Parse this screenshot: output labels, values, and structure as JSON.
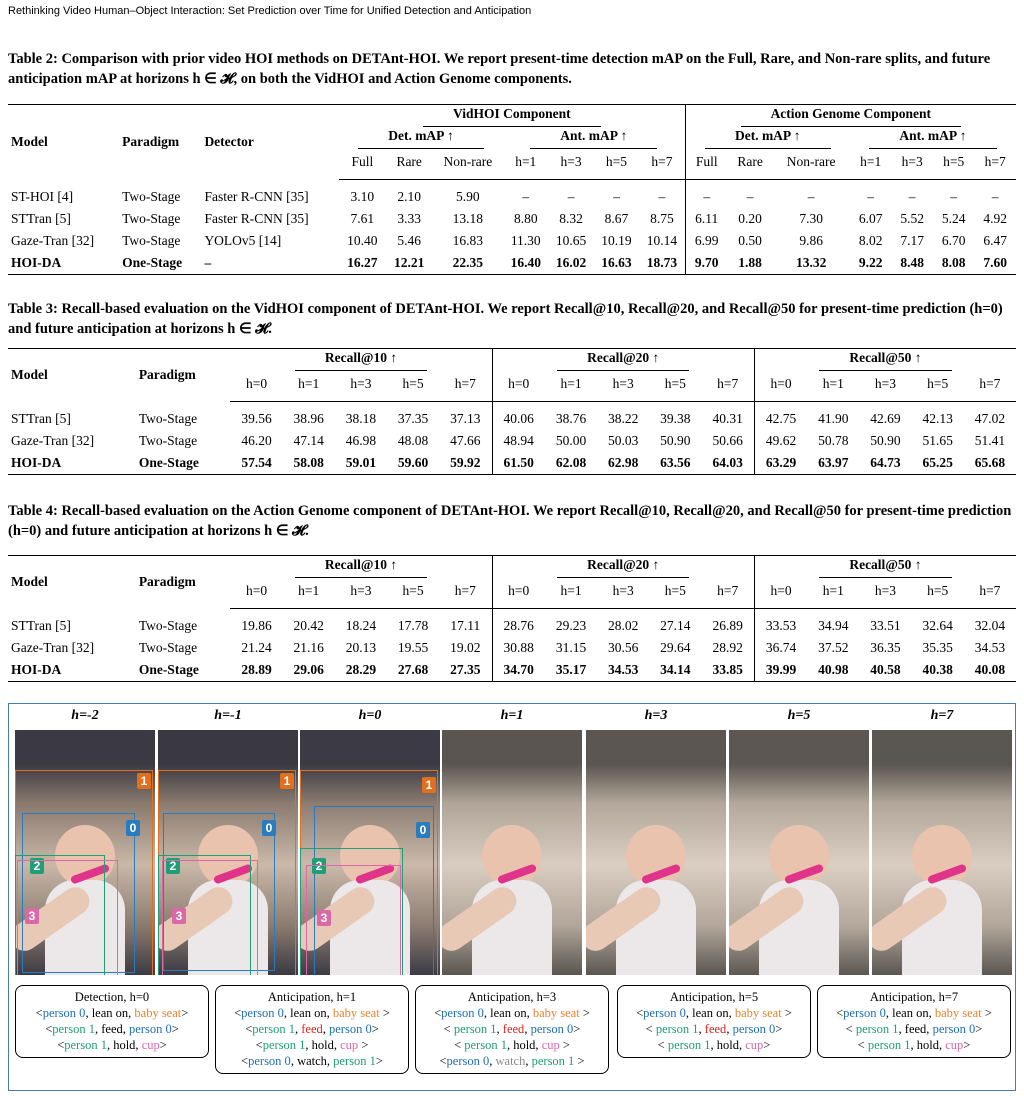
{
  "header": {
    "running_title": "Rethinking Video Human–Object Interaction: Set Prediction over Time for Unified Detection and Anticipation"
  },
  "table2": {
    "caption": "Table 2: Comparison with prior video HOI methods on DETAnt-HOI. We report present-time detection mAP on the Full, Rare, and Non-rare splits, and future anticipation mAP at horizons h ∈ 𝓗, on both the VidHOI and Action Genome components.",
    "row_headers": [
      "Model",
      "Paradigm",
      "Detector"
    ],
    "groups": [
      {
        "name": "VidHOI Component",
        "subgroups": [
          {
            "name": "Det. mAP ↑",
            "columns": [
              "Full",
              "Rare",
              "Non-rare"
            ]
          },
          {
            "name": "Ant. mAP ↑",
            "columns": [
              "h=1",
              "h=3",
              "h=5",
              "h=7"
            ]
          }
        ]
      },
      {
        "name": "Action Genome Component",
        "subgroups": [
          {
            "name": "Det. mAP ↑",
            "columns": [
              "Full",
              "Rare",
              "Non-rare"
            ]
          },
          {
            "name": "Ant. mAP ↑",
            "columns": [
              "h=1",
              "h=3",
              "h=5",
              "h=7"
            ]
          }
        ]
      }
    ],
    "rows": [
      [
        "ST-HOI [4]",
        "Two-Stage",
        "Faster R-CNN [35]",
        "3.10",
        "2.10",
        "5.90",
        "–",
        "–",
        "–",
        "–",
        "–",
        "–",
        "–",
        "–",
        "–",
        "–",
        "–"
      ],
      [
        "STTran [5]",
        "Two-Stage",
        "Faster R-CNN [35]",
        "7.61",
        "3.33",
        "13.18",
        "8.80",
        "8.32",
        "8.67",
        "8.75",
        "6.11",
        "0.20",
        "7.30",
        "6.07",
        "5.52",
        "5.24",
        "4.92"
      ],
      [
        "Gaze-Tran [32]",
        "Two-Stage",
        "YOLOv5 [14]",
        "10.40",
        "5.46",
        "16.83",
        "11.30",
        "10.65",
        "10.19",
        "10.14",
        "6.99",
        "0.50",
        "9.86",
        "8.02",
        "7.17",
        "6.70",
        "6.47"
      ],
      [
        "HOI-DA",
        "One-Stage",
        "–",
        "16.27",
        "12.21",
        "22.35",
        "16.40",
        "16.02",
        "16.63",
        "18.73",
        "9.70",
        "1.88",
        "13.32",
        "9.22",
        "8.48",
        "8.08",
        "7.60"
      ]
    ]
  },
  "table3": {
    "caption": "Table 3: Recall-based evaluation on the VidHOI component of DETAnt-HOI. We report Recall@10, Recall@20, and Recall@50 for present-time prediction (h=0) and future anticipation at horizons h ∈ 𝓗.",
    "row_headers": [
      "Model",
      "Paradigm"
    ],
    "groups": [
      {
        "name": "Recall@10 ↑",
        "columns": [
          "h=0",
          "h=1",
          "h=3",
          "h=5",
          "h=7"
        ]
      },
      {
        "name": "Recall@20 ↑",
        "columns": [
          "h=0",
          "h=1",
          "h=3",
          "h=5",
          "h=7"
        ]
      },
      {
        "name": "Recall@50 ↑",
        "columns": [
          "h=0",
          "h=1",
          "h=3",
          "h=5",
          "h=7"
        ]
      }
    ],
    "rows": [
      [
        "STTran [5]",
        "Two-Stage",
        "39.56",
        "38.96",
        "38.18",
        "37.35",
        "37.13",
        "40.06",
        "38.76",
        "38.22",
        "39.38",
        "40.31",
        "42.75",
        "41.90",
        "42.69",
        "42.13",
        "47.02"
      ],
      [
        "Gaze-Tran [32]",
        "Two-Stage",
        "46.20",
        "47.14",
        "46.98",
        "48.08",
        "47.66",
        "48.94",
        "50.00",
        "50.03",
        "50.90",
        "50.66",
        "49.62",
        "50.78",
        "50.90",
        "51.65",
        "51.41"
      ],
      [
        "HOI-DA",
        "One-Stage",
        "57.54",
        "58.08",
        "59.01",
        "59.60",
        "59.92",
        "61.50",
        "62.08",
        "62.98",
        "63.56",
        "64.03",
        "63.29",
        "63.97",
        "64.73",
        "65.25",
        "65.68"
      ]
    ]
  },
  "table4": {
    "caption": "Table 4: Recall-based evaluation on the Action Genome component of DETAnt-HOI. We report Recall@10, Recall@20, and Recall@50 for present-time prediction (h=0) and future anticipation at horizons h ∈ 𝓗.",
    "row_headers": [
      "Model",
      "Paradigm"
    ],
    "groups": [
      {
        "name": "Recall@10 ↑",
        "columns": [
          "h=0",
          "h=1",
          "h=3",
          "h=5",
          "h=7"
        ]
      },
      {
        "name": "Recall@20 ↑",
        "columns": [
          "h=0",
          "h=1",
          "h=3",
          "h=5",
          "h=7"
        ]
      },
      {
        "name": "Recall@50 ↑",
        "columns": [
          "h=0",
          "h=1",
          "h=3",
          "h=5",
          "h=7"
        ]
      }
    ],
    "rows": [
      [
        "STTran [5]",
        "Two-Stage",
        "19.86",
        "20.42",
        "18.24",
        "17.78",
        "17.11",
        "28.76",
        "29.23",
        "28.02",
        "27.14",
        "26.89",
        "33.53",
        "34.94",
        "33.51",
        "32.64",
        "32.04"
      ],
      [
        "Gaze-Tran [32]",
        "Two-Stage",
        "21.24",
        "21.16",
        "20.13",
        "19.55",
        "19.02",
        "30.88",
        "31.15",
        "30.56",
        "29.64",
        "28.92",
        "36.74",
        "37.52",
        "36.35",
        "35.35",
        "34.53"
      ],
      [
        "HOI-DA",
        "One-Stage",
        "28.89",
        "29.06",
        "28.29",
        "27.68",
        "27.35",
        "34.70",
        "35.17",
        "34.53",
        "34.14",
        "33.85",
        "39.99",
        "40.98",
        "40.58",
        "40.38",
        "40.08"
      ]
    ]
  },
  "figure": {
    "frames": [
      "h=-2",
      "h=-1",
      "h=0",
      "h=1",
      "h=3",
      "h=5",
      "h=7"
    ],
    "boxes": [
      {
        "label": "0",
        "color": "#2b7bbf"
      },
      {
        "label": "1",
        "color": "#e0701e"
      },
      {
        "label": "2",
        "color": "#1f9e77"
      },
      {
        "label": "3",
        "color": "#d96aa7"
      }
    ],
    "panels": [
      {
        "title": "Detection, h=0",
        "lines": [
          [
            {
              "text": "<"
            },
            {
              "text": "person 0",
              "color": "#1f6fb5"
            },
            {
              "text": ", lean on, "
            },
            {
              "text": "baby seat",
              "color": "#e8822a"
            },
            {
              "text": ">"
            }
          ],
          [
            {
              "text": "<"
            },
            {
              "text": "person 1",
              "color": "#1f9e77"
            },
            {
              "text": ", feed, "
            },
            {
              "text": "person 0",
              "color": "#1f6fb5"
            },
            {
              "text": ">"
            }
          ],
          [
            {
              "text": "<"
            },
            {
              "text": "person 1",
              "color": "#1f9e77"
            },
            {
              "text": ", hold, "
            },
            {
              "text": "cup",
              "color": "#d96aa7"
            },
            {
              "text": ">"
            }
          ]
        ]
      },
      {
        "title": "Anticipation, h=1",
        "lines": [
          [
            {
              "text": "<"
            },
            {
              "text": "person 0",
              "color": "#1f6fb5"
            },
            {
              "text": ", lean on, "
            },
            {
              "text": "baby seat",
              "color": "#e8822a"
            },
            {
              "text": " >"
            }
          ],
          [
            {
              "text": "<"
            },
            {
              "text": "person 1",
              "color": "#1f9e77"
            },
            {
              "text": ", "
            },
            {
              "text": "feed",
              "color": "#e02020"
            },
            {
              "text": ", "
            },
            {
              "text": "person 0",
              "color": "#1f6fb5"
            },
            {
              "text": ">"
            }
          ],
          [
            {
              "text": "<"
            },
            {
              "text": "person 1",
              "color": "#1f9e77"
            },
            {
              "text": ", hold, "
            },
            {
              "text": "cup",
              "color": "#d96aa7"
            },
            {
              "text": " >"
            }
          ],
          [
            {
              "text": "<"
            },
            {
              "text": "person 0",
              "color": "#1f6fb5"
            },
            {
              "text": ", watch, "
            },
            {
              "text": "person 1",
              "color": "#1f9e77"
            },
            {
              "text": ">"
            }
          ]
        ]
      },
      {
        "title": "Anticipation, h=3",
        "lines": [
          [
            {
              "text": "<"
            },
            {
              "text": "person 0",
              "color": "#1f6fb5"
            },
            {
              "text": ", lean on, "
            },
            {
              "text": "baby seat",
              "color": "#e8822a"
            },
            {
              "text": " >"
            }
          ],
          [
            {
              "text": "< "
            },
            {
              "text": "person 1",
              "color": "#1f9e77"
            },
            {
              "text": ", "
            },
            {
              "text": "feed",
              "color": "#e02020"
            },
            {
              "text": ", "
            },
            {
              "text": "person 0",
              "color": "#1f6fb5"
            },
            {
              "text": ">"
            }
          ],
          [
            {
              "text": "< "
            },
            {
              "text": "person 1",
              "color": "#1f9e77"
            },
            {
              "text": ", hold, "
            },
            {
              "text": "cup",
              "color": "#d96aa7"
            },
            {
              "text": " >"
            }
          ],
          [
            {
              "text": "<"
            },
            {
              "text": "person 0",
              "color": "#1f6fb5"
            },
            {
              "text": ", "
            },
            {
              "text": "watch",
              "color": "#888888"
            },
            {
              "text": ", "
            },
            {
              "text": "person 1",
              "color": "#1f9e77"
            },
            {
              "text": " >"
            }
          ]
        ]
      },
      {
        "title": "Anticipation, h=5",
        "lines": [
          [
            {
              "text": "<"
            },
            {
              "text": "person 0",
              "color": "#1f6fb5"
            },
            {
              "text": ", lean on, "
            },
            {
              "text": "baby seat",
              "color": "#e8822a"
            },
            {
              "text": " >"
            }
          ],
          [
            {
              "text": "< "
            },
            {
              "text": "person 1",
              "color": "#1f9e77"
            },
            {
              "text": ", "
            },
            {
              "text": "feed",
              "color": "#e02020"
            },
            {
              "text": ", "
            },
            {
              "text": "person 0",
              "color": "#1f6fb5"
            },
            {
              "text": ">"
            }
          ],
          [
            {
              "text": "< "
            },
            {
              "text": "person 1",
              "color": "#1f9e77"
            },
            {
              "text": ", hold, "
            },
            {
              "text": "cup",
              "color": "#d96aa7"
            },
            {
              "text": ">"
            }
          ]
        ]
      },
      {
        "title": "Anticipation, h=7",
        "lines": [
          [
            {
              "text": "<"
            },
            {
              "text": "person 0",
              "color": "#1f6fb5"
            },
            {
              "text": ", lean on, "
            },
            {
              "text": "baby seat",
              "color": "#e8822a"
            },
            {
              "text": " >"
            }
          ],
          [
            {
              "text": "< "
            },
            {
              "text": "person 1",
              "color": "#1f9e77"
            },
            {
              "text": ", feed, "
            },
            {
              "text": "person 0",
              "color": "#1f6fb5"
            },
            {
              "text": ">"
            }
          ],
          [
            {
              "text": "< "
            },
            {
              "text": "person 1",
              "color": "#1f9e77"
            },
            {
              "text": ", hold, "
            },
            {
              "text": "cup",
              "color": "#d96aa7"
            },
            {
              "text": ">"
            }
          ]
        ]
      }
    ]
  }
}
